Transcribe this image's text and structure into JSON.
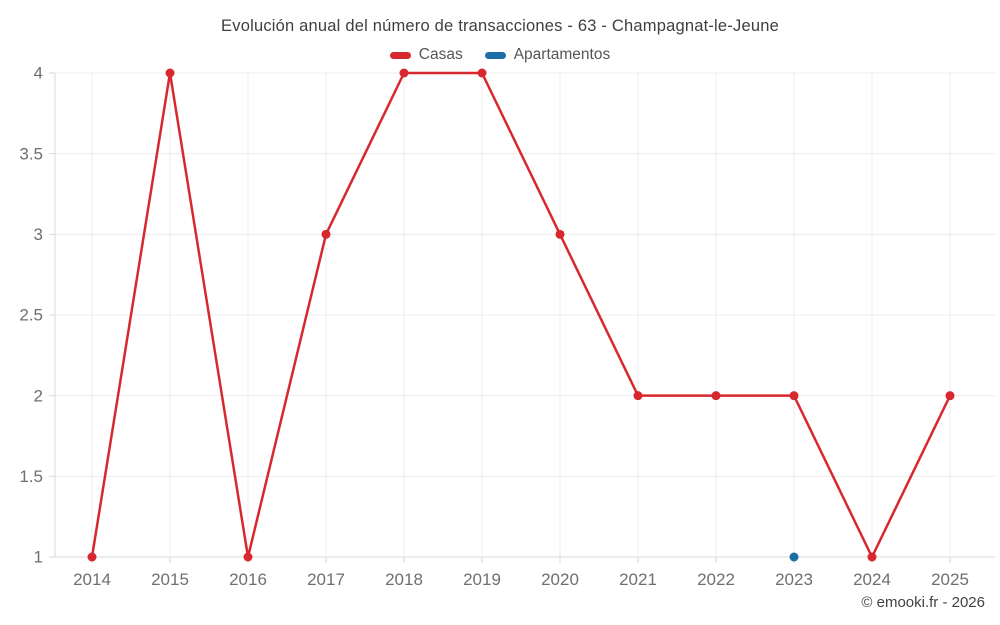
{
  "chart": {
    "title": "Evolución anual del número de transacciones - 63 - Champagnat-le-Jeune"
  },
  "footer": {
    "text": "© emooki.fr - 2026"
  },
  "chart_data": {
    "type": "line",
    "title": "Evolución anual del número de transacciones - 63 - Champagnat-le-Jeune",
    "categories": [
      "2014",
      "2015",
      "2016",
      "2017",
      "2018",
      "2019",
      "2020",
      "2021",
      "2022",
      "2023",
      "2024",
      "2025"
    ],
    "series": [
      {
        "name": "Casas",
        "color": "#d7282f",
        "values": [
          1,
          4,
          1,
          3,
          4,
          4,
          3,
          2,
          2,
          2,
          1,
          2
        ]
      },
      {
        "name": "Apartamentos",
        "color": "#1c6ea4",
        "values": [
          null,
          null,
          null,
          null,
          null,
          null,
          null,
          null,
          null,
          1,
          null,
          null
        ]
      }
    ],
    "xlabel": "",
    "ylabel": "",
    "ylim": [
      1,
      4
    ],
    "yticks": [
      1,
      1.5,
      2,
      2.5,
      3,
      3.5,
      4
    ],
    "grid": true,
    "legend_position": "top",
    "colors": {
      "grid": "#ececec",
      "axis": "#d8d8d8",
      "tick_label": "#6f6f6f"
    }
  }
}
